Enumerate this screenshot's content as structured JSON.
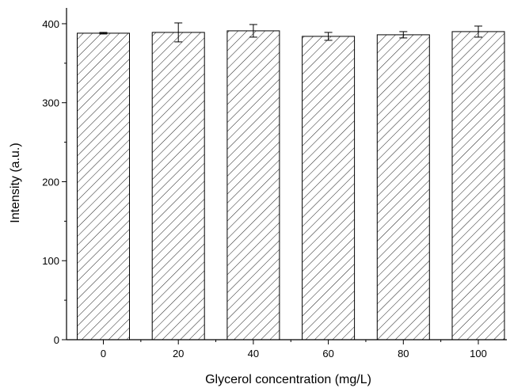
{
  "chart_data": {
    "type": "bar",
    "title": "",
    "xlabel": "Glycerol concentration (mg/L)",
    "ylabel": "Intensity (a.u.)",
    "categories": [
      "0",
      "20",
      "40",
      "60",
      "80",
      "100"
    ],
    "values": [
      388,
      389,
      391,
      384,
      386,
      390
    ],
    "errors": [
      1,
      12,
      8,
      5,
      4,
      7
    ],
    "ylim": [
      0,
      420
    ],
    "yticks": [
      "0",
      "100",
      "200",
      "300",
      "400"
    ],
    "grid": false,
    "legend": "none",
    "bar_fill": "hatched"
  }
}
